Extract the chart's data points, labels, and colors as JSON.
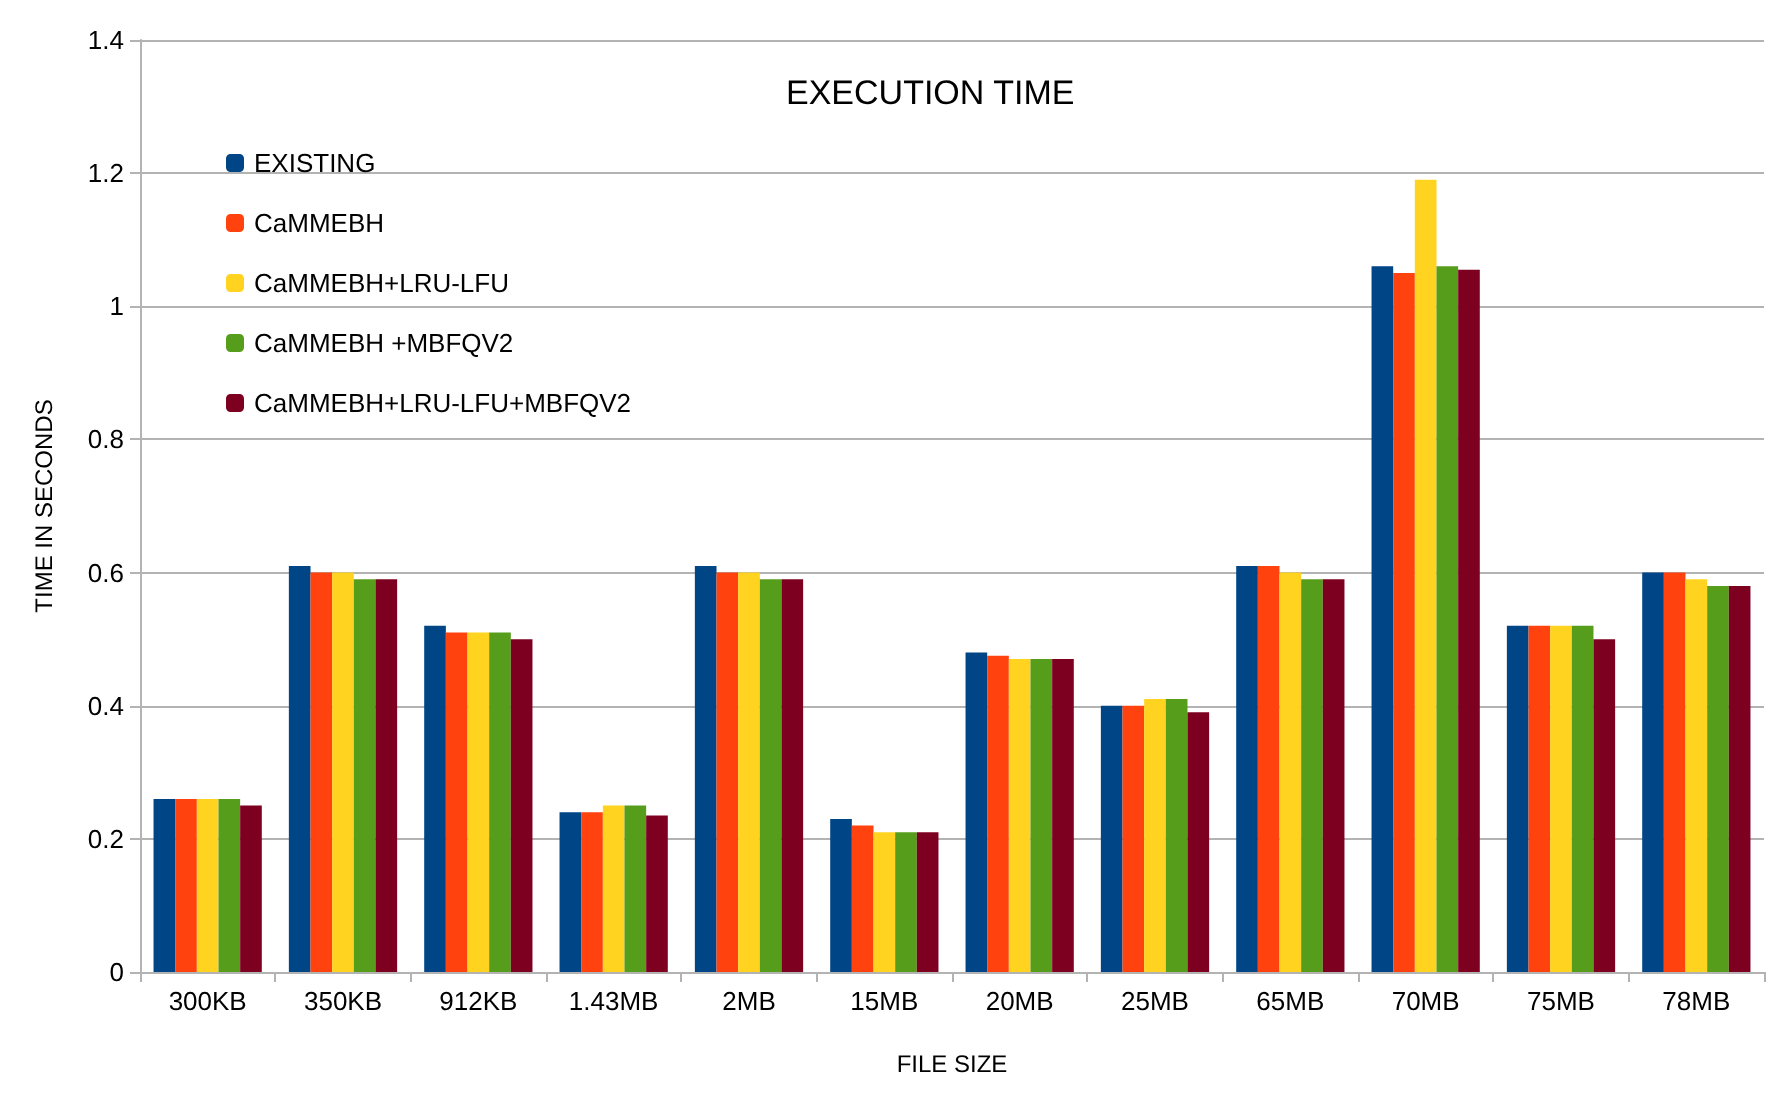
{
  "chart_data": {
    "type": "bar",
    "title": "EXECUTION TIME",
    "xlabel": "FILE SIZE",
    "ylabel": "TIME IN SECONDS",
    "categories": [
      "300KB",
      "350KB",
      "912KB",
      "1.43MB",
      "2MB",
      "15MB",
      "20MB",
      "25MB",
      "65MB",
      "70MB",
      "75MB",
      "78MB"
    ],
    "series": [
      {
        "name": "EXISTING",
        "color": "#004586",
        "values": [
          0.26,
          0.61,
          0.52,
          0.24,
          0.61,
          0.23,
          0.48,
          0.4,
          0.61,
          1.06,
          0.52,
          0.6
        ]
      },
      {
        "name": "CaMMEBH",
        "color": "#ff420e",
        "values": [
          0.26,
          0.6,
          0.51,
          0.24,
          0.6,
          0.22,
          0.475,
          0.4,
          0.61,
          1.05,
          0.52,
          0.6
        ]
      },
      {
        "name": "CaMMEBH+LRU-LFU",
        "color": "#ffd320",
        "values": [
          0.26,
          0.6,
          0.51,
          0.25,
          0.6,
          0.21,
          0.47,
          0.41,
          0.6,
          1.19,
          0.52,
          0.59
        ]
      },
      {
        "name": "CaMMEBH +MBFQV2",
        "color": "#579d1c",
        "values": [
          0.26,
          0.59,
          0.51,
          0.25,
          0.59,
          0.21,
          0.47,
          0.41,
          0.59,
          1.06,
          0.52,
          0.58
        ]
      },
      {
        "name": "CaMMEBH+LRU-LFU+MBFQV2",
        "color": "#7e0021",
        "values": [
          0.25,
          0.59,
          0.5,
          0.235,
          0.59,
          0.21,
          0.47,
          0.39,
          0.59,
          1.055,
          0.5,
          0.58
        ]
      }
    ],
    "ylim": [
      0,
      1.4
    ],
    "yticks": [
      0,
      0.2,
      0.4,
      0.6,
      0.8,
      1,
      1.2,
      1.4
    ],
    "grid": "y",
    "legend": "top left"
  }
}
